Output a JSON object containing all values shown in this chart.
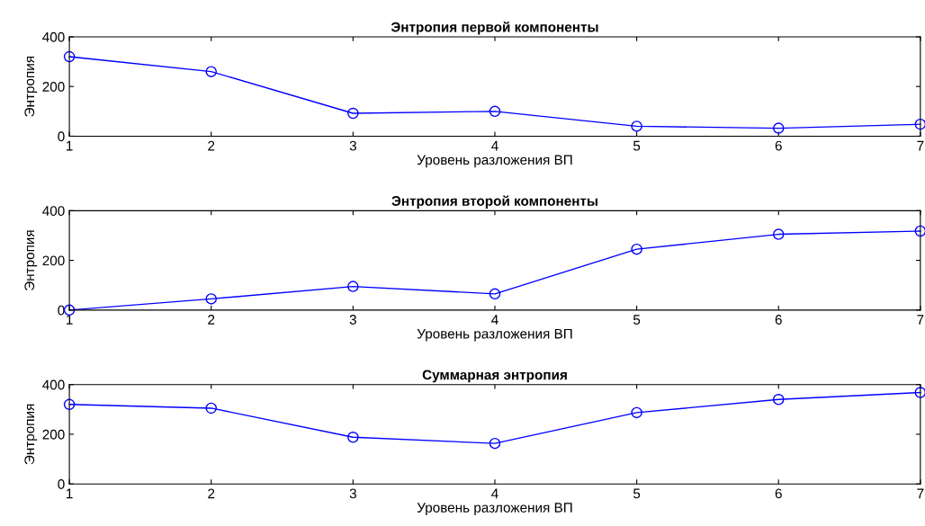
{
  "chart_data": [
    {
      "type": "line",
      "title": "Энтропия первой компоненты",
      "xlabel": "Уровень разложения ВП",
      "ylabel": "Энтропия",
      "x": [
        1,
        2,
        3,
        4,
        5,
        6,
        7
      ],
      "series": [
        {
          "color": "#0000ff",
          "values": [
            320,
            260,
            92,
            100,
            40,
            32,
            48
          ]
        }
      ],
      "xlim": [
        1,
        7
      ],
      "xticks": [
        1,
        2,
        3,
        4,
        5,
        6,
        7
      ],
      "ylim": [
        0,
        400
      ],
      "yticks": [
        0,
        200,
        400
      ],
      "marker": "circle",
      "line_style": "solid",
      "grid": false
    },
    {
      "type": "line",
      "title": "Энтропия второй компоненты",
      "xlabel": "Уровень разложения ВП",
      "ylabel": "Энтропия",
      "x": [
        1,
        2,
        3,
        4,
        5,
        6,
        7
      ],
      "series": [
        {
          "color": "#0000ff",
          "values": [
            0,
            45,
            95,
            65,
            245,
            305,
            318
          ]
        }
      ],
      "xlim": [
        1,
        7
      ],
      "xticks": [
        1,
        2,
        3,
        4,
        5,
        6,
        7
      ],
      "ylim": [
        0,
        400
      ],
      "yticks": [
        0,
        200,
        400
      ],
      "marker": "circle",
      "line_style": "solid",
      "grid": false
    },
    {
      "type": "line",
      "title": "Суммарная энтропия",
      "xlabel": "Уровень разложения ВП",
      "ylabel": "Энтропия",
      "x": [
        1,
        2,
        3,
        4,
        5,
        6,
        7
      ],
      "series": [
        {
          "color": "#0000ff",
          "values": [
            320,
            305,
            188,
            163,
            287,
            340,
            368
          ]
        }
      ],
      "xlim": [
        1,
        7
      ],
      "xticks": [
        1,
        2,
        3,
        4,
        5,
        6,
        7
      ],
      "ylim": [
        0,
        400
      ],
      "yticks": [
        0,
        200,
        400
      ],
      "marker": "circle",
      "line_style": "solid",
      "grid": false
    }
  ]
}
